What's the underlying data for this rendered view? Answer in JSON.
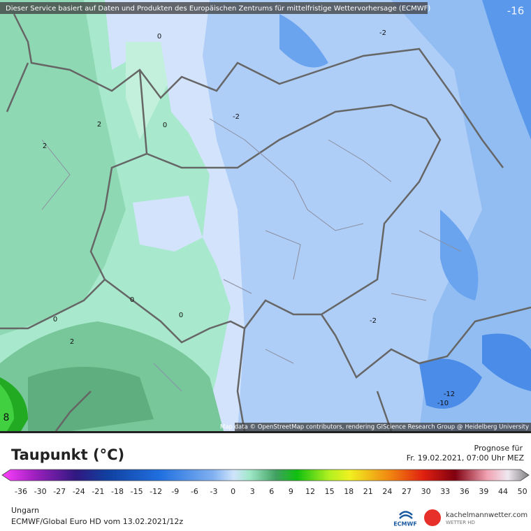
{
  "header": {
    "banner": "Dieser Service basiert auf Daten und Produkten des Europäischen Zentrums für mittelfristige Wettervorhersage (ECMWF)"
  },
  "map": {
    "attribution": "Map data © OpenStreetMap contributors, rendering GIScience Research Group @ Heidelberg University",
    "contour_labels": [
      "-16",
      "0",
      "-2",
      "-2",
      "2",
      "0",
      "2",
      "0",
      "0",
      "0",
      "2",
      "-2",
      "-12",
      "-10",
      "8"
    ]
  },
  "legend": {
    "title": "Taupunkt (°C)",
    "ticks": [
      -36,
      -30,
      -27,
      -24,
      -21,
      -18,
      -15,
      -12,
      -9,
      -6,
      -3,
      0,
      3,
      6,
      9,
      12,
      15,
      18,
      21,
      24,
      27,
      30,
      33,
      36,
      39,
      44,
      50
    ]
  },
  "forecast": {
    "label": "Prognose für",
    "date": "Fr. 19.02.2021, 07:00 Uhr MEZ"
  },
  "footer": {
    "region": "Ungarn",
    "model": "ECMWF/Global Euro HD vom  13.02.2021/12z",
    "ecmwf_logo": "ECMWF",
    "site": "kachelmannwetter.com",
    "site_sub": "WETTER HD"
  }
}
